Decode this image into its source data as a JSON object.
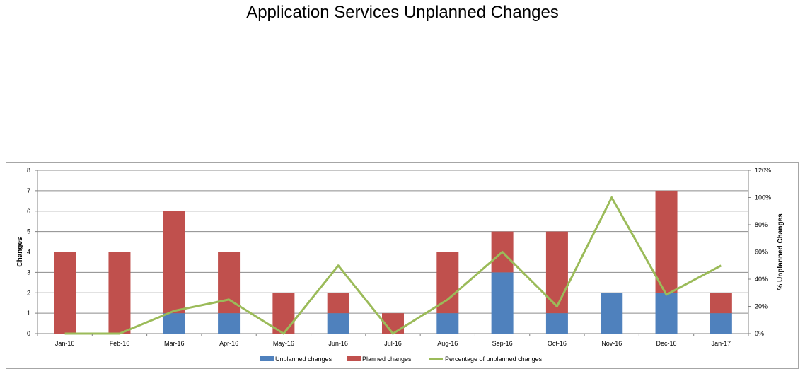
{
  "chart_data": {
    "type": "bar",
    "title": "Application Services Unplanned Changes",
    "categories": [
      "Jan-16",
      "Feb-16",
      "Mar-16",
      "Apr-16",
      "May-16",
      "Jun-16",
      "Jul-16",
      "Aug-16",
      "Sep-16",
      "Oct-16",
      "Nov-16",
      "Dec-16",
      "Jan-17"
    ],
    "series": [
      {
        "name": "Unplanned changes",
        "kind": "bar",
        "stack": "changes",
        "color": "#4f81bd",
        "values": [
          0,
          0,
          1,
          1,
          0,
          1,
          0,
          1,
          3,
          1,
          2,
          2,
          1
        ]
      },
      {
        "name": "Planned changes",
        "kind": "bar",
        "stack": "changes",
        "color": "#c0504d",
        "values": [
          4,
          4,
          5,
          3,
          2,
          1,
          1,
          3,
          2,
          4,
          0,
          5,
          1
        ]
      },
      {
        "name": "Percentage of unplanned changes",
        "kind": "line",
        "axis": "right",
        "color": "#9bbb59",
        "values": [
          0,
          0,
          16.7,
          25,
          0,
          50,
          0,
          25,
          60,
          20,
          100,
          28.6,
          50
        ]
      }
    ],
    "ylabel": "Changes",
    "ylim": [
      0,
      8
    ],
    "yticks": [
      "0",
      "1",
      "2",
      "3",
      "4",
      "5",
      "6",
      "7",
      "8"
    ],
    "y2label": "% Unplanned Changes",
    "y2lim": [
      0,
      120
    ],
    "y2ticks": [
      "0%",
      "20%",
      "40%",
      "60%",
      "80%",
      "100%",
      "120%"
    ],
    "grid": true,
    "legend_position": "bottom"
  }
}
